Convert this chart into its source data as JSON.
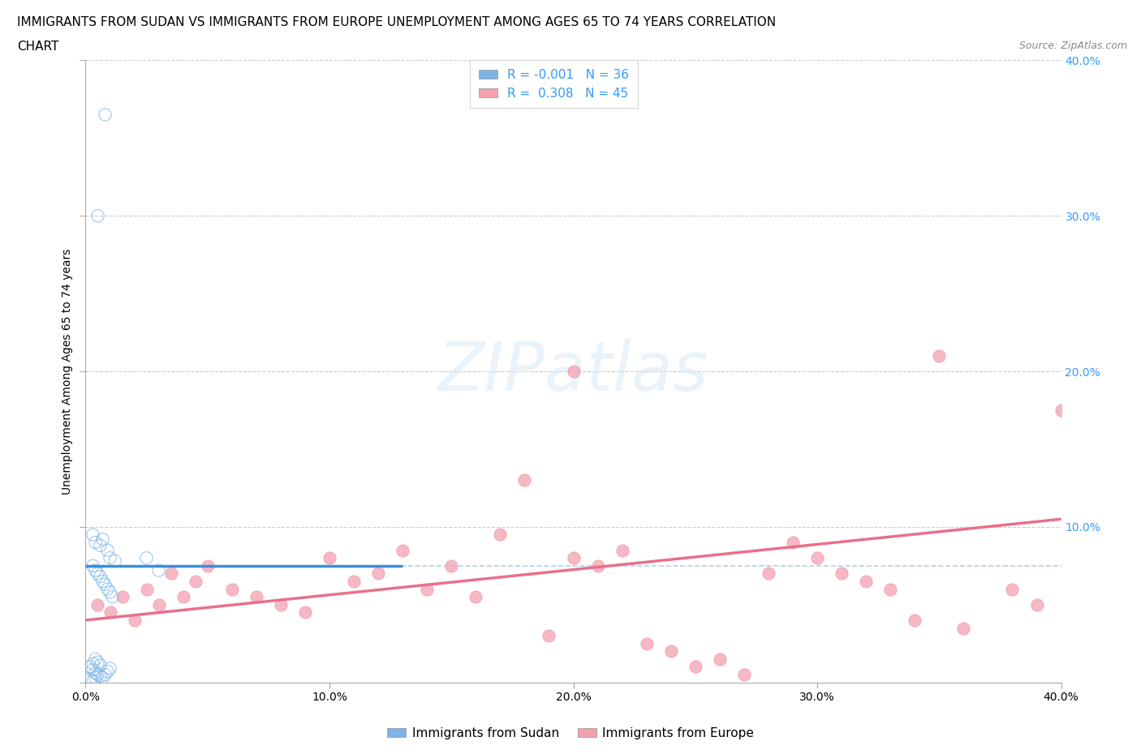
{
  "title_line1": "IMMIGRANTS FROM SUDAN VS IMMIGRANTS FROM EUROPE UNEMPLOYMENT AMONG AGES 65 TO 74 YEARS CORRELATION",
  "title_line2": "CHART",
  "source": "Source: ZipAtlas.com",
  "ylabel": "Unemployment Among Ages 65 to 74 years",
  "xlim": [
    0.0,
    0.4
  ],
  "ylim": [
    0.0,
    0.4
  ],
  "xtick_vals": [
    0.0,
    0.1,
    0.2,
    0.3,
    0.4
  ],
  "ytick_vals": [
    0.0,
    0.1,
    0.2,
    0.3,
    0.4
  ],
  "xticklabels": [
    "0.0%",
    "10.0%",
    "20.0%",
    "30.0%",
    "40.0%"
  ],
  "right_yticklabels": [
    "",
    "10.0%",
    "20.0%",
    "30.0%",
    "40.0%"
  ],
  "grid_color": "#c8c8c8",
  "background_color": "#ffffff",
  "sudan_color": "#7ab4e8",
  "europe_color": "#f4a0b0",
  "sudan_line_color": "#3a8fdd",
  "europe_line_color": "#e8708a",
  "dashed_line_color": "#a0c8f0",
  "sudan_R": -0.001,
  "sudan_N": 36,
  "europe_R": 0.308,
  "europe_N": 45,
  "right_ytick_color": "#3399ff",
  "legend_R_color": "#3399ff",
  "title_fontsize": 11,
  "axis_label_fontsize": 10,
  "tick_fontsize": 10,
  "legend_fontsize": 11,
  "sudan_x": [
    0.008,
    0.005,
    0.003,
    0.004,
    0.006,
    0.007,
    0.009,
    0.01,
    0.012,
    0.003,
    0.004,
    0.005,
    0.006,
    0.007,
    0.008,
    0.009,
    0.01,
    0.011,
    0.002,
    0.003,
    0.004,
    0.005,
    0.006,
    0.007,
    0.008,
    0.009,
    0.01,
    0.003,
    0.004,
    0.005,
    0.006,
    0.025,
    0.03,
    0.002,
    0.003,
    0.004
  ],
  "sudan_y": [
    0.365,
    0.3,
    0.095,
    0.09,
    0.088,
    0.092,
    0.085,
    0.08,
    0.078,
    0.075,
    0.072,
    0.07,
    0.068,
    0.065,
    0.063,
    0.06,
    0.058,
    0.055,
    0.01,
    0.008,
    0.006,
    0.005,
    0.004,
    0.003,
    0.005,
    0.007,
    0.009,
    0.012,
    0.015,
    0.013,
    0.011,
    0.08,
    0.072,
    0.002,
    0.001,
    0.003
  ],
  "europe_x": [
    0.005,
    0.01,
    0.015,
    0.02,
    0.025,
    0.03,
    0.035,
    0.04,
    0.045,
    0.05,
    0.06,
    0.07,
    0.08,
    0.09,
    0.1,
    0.11,
    0.12,
    0.13,
    0.14,
    0.15,
    0.16,
    0.17,
    0.18,
    0.19,
    0.2,
    0.21,
    0.22,
    0.23,
    0.24,
    0.25,
    0.26,
    0.27,
    0.28,
    0.29,
    0.3,
    0.31,
    0.32,
    0.33,
    0.34,
    0.35,
    0.36,
    0.38,
    0.39,
    0.4,
    0.2
  ],
  "europe_y": [
    0.05,
    0.045,
    0.055,
    0.04,
    0.06,
    0.05,
    0.07,
    0.055,
    0.065,
    0.075,
    0.06,
    0.055,
    0.05,
    0.045,
    0.08,
    0.065,
    0.07,
    0.085,
    0.06,
    0.075,
    0.055,
    0.095,
    0.13,
    0.03,
    0.08,
    0.075,
    0.085,
    0.025,
    0.02,
    0.01,
    0.015,
    0.005,
    0.07,
    0.09,
    0.08,
    0.07,
    0.065,
    0.06,
    0.04,
    0.21,
    0.035,
    0.06,
    0.05,
    0.175,
    0.2
  ],
  "sudan_line_y0": 0.075,
  "sudan_line_y1": 0.075,
  "europe_line_y0": 0.04,
  "europe_line_y1": 0.105,
  "dashed_line_y": 0.075
}
